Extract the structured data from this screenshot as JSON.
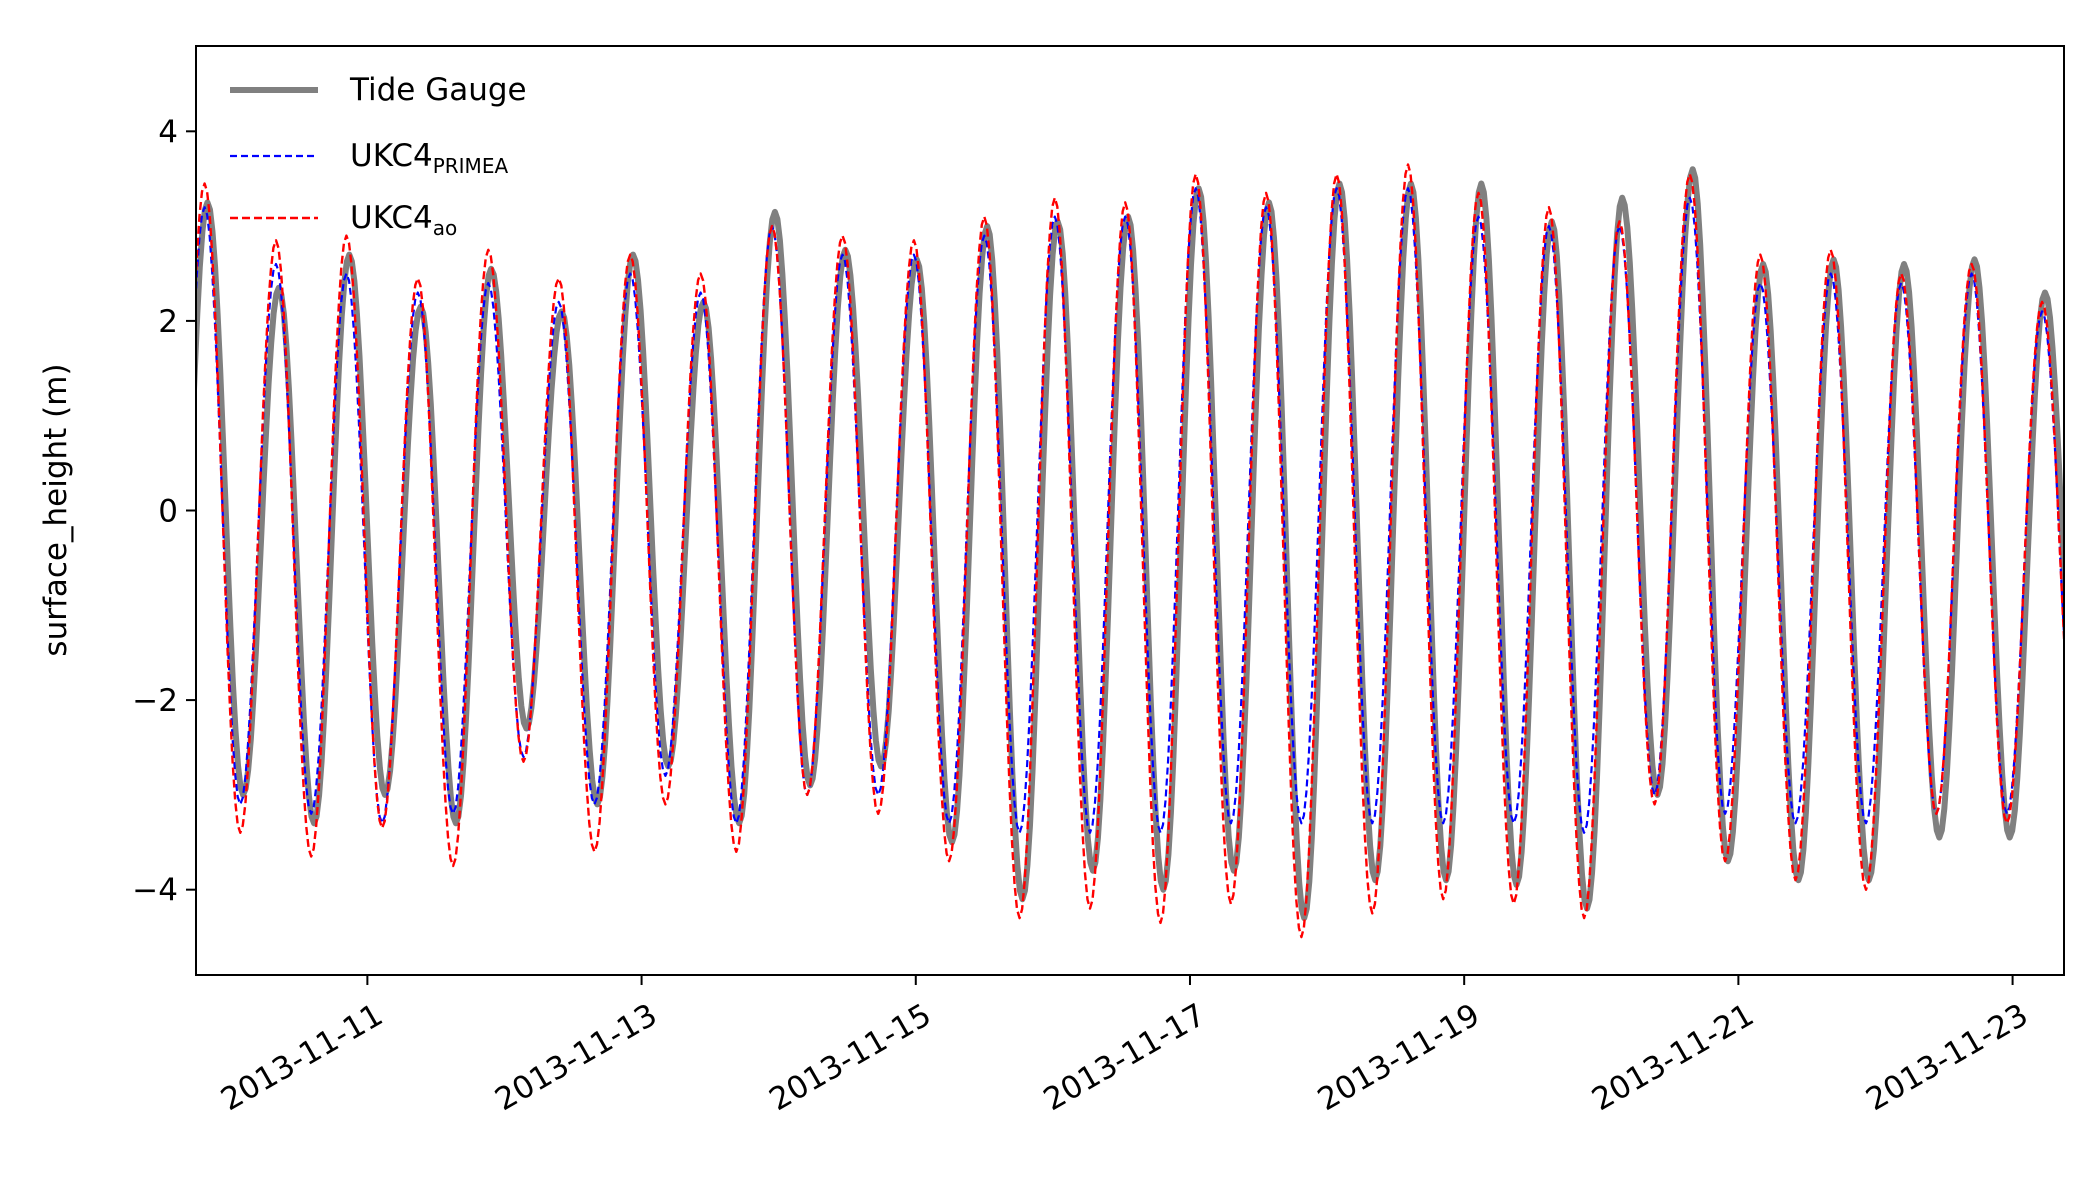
{
  "chart_data": {
    "type": "line",
    "ylabel": "surface_height (m)",
    "xlabel": "",
    "xlim": [
      "2013-11-09 18:00",
      "2013-11-23 09:00"
    ],
    "ylim": [
      -4.9,
      4.9
    ],
    "x_ticks": [
      "2013-11-11",
      "2013-11-13",
      "2013-11-15",
      "2013-11-17",
      "2013-11-19",
      "2013-11-21",
      "2013-11-23"
    ],
    "y_ticks": [
      -4,
      -2,
      0,
      2,
      4
    ],
    "y_tick_labels": [
      "−4",
      "−2",
      "0",
      "2",
      "4"
    ],
    "grid": false,
    "legend_position": "top-left",
    "series": [
      {
        "name": "Tide Gauge",
        "color": "#808080",
        "style": "solid",
        "peak_times": [
          "2013-11-09 20:00",
          "2013-11-10 08:30",
          "2013-11-10 20:50",
          "2013-11-11 09:20",
          "2013-11-11 21:40",
          "2013-11-12 10:00",
          "2013-11-12 22:30",
          "2013-11-13 10:50",
          "2013-11-13 23:20",
          "2013-11-14 11:40",
          "2013-11-15 00:10",
          "2013-11-15 12:30",
          "2013-11-16 00:50",
          "2013-11-16 13:10",
          "2013-11-17 01:30",
          "2013-11-17 13:50",
          "2013-11-18 02:10",
          "2013-11-18 14:40",
          "2013-11-19 03:00",
          "2013-11-19 15:20",
          "2013-11-20 03:40",
          "2013-11-20 16:00",
          "2013-11-21 04:20",
          "2013-11-21 16:40",
          "2013-11-22 05:00",
          "2013-11-22 17:20",
          "2013-11-23 05:40"
        ],
        "high_water": [
          3.25,
          2.35,
          2.7,
          2.15,
          2.55,
          2.1,
          2.7,
          2.2,
          3.15,
          2.75,
          2.65,
          3.0,
          3.05,
          3.1,
          3.4,
          3.25,
          3.45,
          3.45,
          3.45,
          3.05,
          3.3,
          3.6,
          2.6,
          2.65,
          2.6,
          2.65,
          2.3
        ],
        "low_water": [
          -3.0,
          -3.3,
          -3.0,
          -3.3,
          -2.3,
          -3.1,
          -2.7,
          -3.3,
          -2.9,
          -2.7,
          -3.5,
          -4.1,
          -3.8,
          -4.0,
          -3.8,
          -4.3,
          -3.9,
          -3.9,
          -3.95,
          -4.2,
          -3.0,
          -3.7,
          -3.9,
          -3.9,
          -3.45,
          -3.45,
          -3.05
        ]
      },
      {
        "name": "UKC4_PRIMEA",
        "name_main": "UKC4",
        "name_sub": "PRIMEA",
        "color": "#0000ff",
        "style": "dashed",
        "peak_times": [
          "2013-11-09 19:30",
          "2013-11-10 08:00",
          "2013-11-10 20:20",
          "2013-11-11 08:50",
          "2013-11-11 21:10",
          "2013-11-12 09:30",
          "2013-11-12 22:00",
          "2013-11-13 10:20",
          "2013-11-13 22:50",
          "2013-11-14 11:10",
          "2013-11-14 23:40",
          "2013-11-15 12:00",
          "2013-11-16 00:20",
          "2013-11-16 12:40",
          "2013-11-17 01:00",
          "2013-11-17 13:20",
          "2013-11-18 01:40",
          "2013-11-18 14:10",
          "2013-11-19 02:30",
          "2013-11-19 14:50",
          "2013-11-20 03:10",
          "2013-11-20 15:30",
          "2013-11-21 03:50",
          "2013-11-21 16:10",
          "2013-11-22 04:30",
          "2013-11-22 16:50",
          "2013-11-23 05:10"
        ],
        "high_water": [
          3.2,
          2.6,
          2.5,
          2.3,
          2.4,
          2.2,
          2.5,
          2.3,
          3.0,
          2.7,
          2.7,
          2.9,
          3.1,
          3.1,
          3.4,
          3.2,
          3.4,
          3.4,
          3.1,
          3.0,
          3.0,
          3.3,
          2.4,
          2.5,
          2.4,
          2.5,
          2.1
        ],
        "low_water": [
          -3.1,
          -3.2,
          -3.3,
          -3.2,
          -2.6,
          -3.1,
          -2.8,
          -3.3,
          -3.0,
          -3.0,
          -3.3,
          -3.4,
          -3.4,
          -3.4,
          -3.3,
          -3.3,
          -3.3,
          -3.3,
          -3.3,
          -3.4,
          -3.0,
          -3.2,
          -3.3,
          -3.3,
          -3.2,
          -3.2,
          -2.9
        ]
      },
      {
        "name": "UKC4_ao",
        "name_main": "UKC4",
        "name_sub": "ao",
        "color": "#ff0000",
        "style": "dashed",
        "peak_times": [
          "2013-11-09 19:30",
          "2013-11-10 08:00",
          "2013-11-10 20:20",
          "2013-11-11 08:50",
          "2013-11-11 21:10",
          "2013-11-12 09:30",
          "2013-11-12 22:00",
          "2013-11-13 10:20",
          "2013-11-13 22:50",
          "2013-11-14 11:10",
          "2013-11-14 23:40",
          "2013-11-15 12:00",
          "2013-11-16 00:20",
          "2013-11-16 12:40",
          "2013-11-17 01:00",
          "2013-11-17 13:20",
          "2013-11-18 01:40",
          "2013-11-18 14:10",
          "2013-11-19 02:30",
          "2013-11-19 14:50",
          "2013-11-20 03:10",
          "2013-11-20 15:30",
          "2013-11-21 03:50",
          "2013-11-21 16:10",
          "2013-11-22 04:30",
          "2013-11-22 16:50",
          "2013-11-23 05:10"
        ],
        "high_water": [
          3.45,
          2.85,
          2.9,
          2.45,
          2.75,
          2.45,
          2.7,
          2.5,
          3.0,
          2.9,
          2.85,
          3.1,
          3.3,
          3.25,
          3.55,
          3.35,
          3.55,
          3.65,
          3.35,
          3.2,
          3.05,
          3.55,
          2.7,
          2.75,
          2.5,
          2.6,
          2.2
        ],
        "low_water": [
          -3.4,
          -3.65,
          -3.35,
          -3.75,
          -2.65,
          -3.6,
          -3.1,
          -3.6,
          -3.0,
          -3.2,
          -3.7,
          -4.3,
          -4.2,
          -4.35,
          -4.15,
          -4.5,
          -4.25,
          -4.1,
          -4.15,
          -4.3,
          -3.1,
          -3.7,
          -3.9,
          -4.0,
          -3.2,
          -3.3,
          -3.0
        ]
      }
    ]
  }
}
